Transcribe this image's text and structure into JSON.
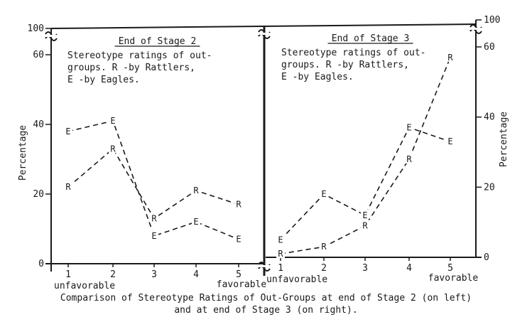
{
  "chart_data": [
    {
      "type": "line",
      "title": "End of Stage 2",
      "subtitle": [
        "Stereotype ratings of out-",
        "groups.   R -by Rattlers,",
        "E -by Eagles."
      ],
      "ylabel": "Percentage",
      "ylim": [
        0,
        60
      ],
      "y_broken_top": 100,
      "yticks": [
        0,
        20,
        40,
        60,
        100
      ],
      "x": [
        1,
        2,
        3,
        4,
        5
      ],
      "xticks": [
        "1",
        "2",
        "3",
        "4",
        "5"
      ],
      "x_annotations": {
        "1": "unfavorable",
        "5": "favorable"
      },
      "y_axis_side": "left",
      "series": [
        {
          "name": "E",
          "values": [
            38,
            41,
            8,
            12,
            7
          ]
        },
        {
          "name": "R",
          "values": [
            22,
            33,
            13,
            21,
            17
          ]
        }
      ]
    },
    {
      "type": "line",
      "title": "End of Stage 3",
      "subtitle": [
        "Stereotype ratings of out-",
        "groups.   R -by Rattlers,",
        "E -by Eagles."
      ],
      "ylabel": "Percentage",
      "ylim": [
        0,
        60
      ],
      "y_broken_top": 100,
      "yticks": [
        0,
        20,
        40,
        60,
        100
      ],
      "x": [
        1,
        2,
        3,
        4,
        5
      ],
      "xticks": [
        "1",
        "2",
        "3",
        "4",
        "5"
      ],
      "x_annotations": {
        "1": "unfavorable",
        "5": "favorable"
      },
      "y_axis_side": "right",
      "series": [
        {
          "name": "E",
          "values": [
            5,
            18,
            12,
            37,
            33
          ]
        },
        {
          "name": "R",
          "values": [
            1,
            3,
            9,
            28,
            57
          ]
        }
      ]
    }
  ],
  "caption": [
    "Comparison of Stereotype Ratings of Out-Groups at end of Stage 2 (on left)",
    "and at end of Stage 3 (on right)."
  ]
}
